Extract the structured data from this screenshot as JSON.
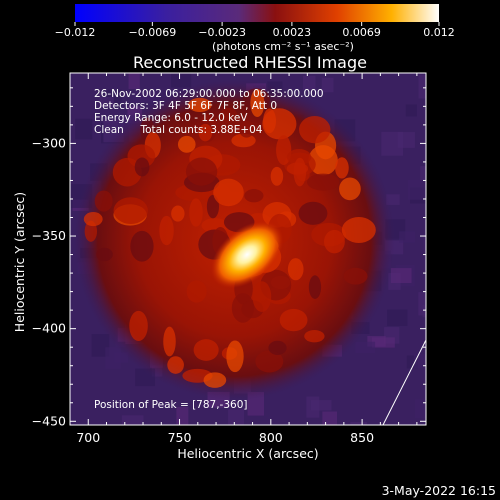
{
  "chart_data": {
    "type": "heatmap",
    "title": "Reconstructed RHESSI Image",
    "xlabel": "Heliocentric X (arcsec)",
    "ylabel": "Heliocentric Y (arcsec)",
    "xlim": [
      690,
      885
    ],
    "ylim": [
      -452,
      -262
    ],
    "x_ticks": [
      700,
      750,
      800,
      850
    ],
    "y_ticks": [
      -300,
      -350,
      -400,
      -450
    ],
    "colorbar": {
      "min": -0.012,
      "max": 0.012,
      "ticks": [
        "-0.012",
        "-0.0069",
        "-0.0023",
        "0.0023",
        "0.0069",
        "0.012"
      ],
      "unit_label": "(photons cm⁻² s⁻¹ asec⁻²)"
    },
    "annotations": {
      "time_range": "26-Nov-2002 06:29:00.000 to 06:35:00.000",
      "detectors": "Detectors: 3F 4F 5F 6F 7F 8F, Att 0",
      "energy_range": "Energy Range: 6.0 - 12.0 keV",
      "method": "Clean     Total counts: 3.88E+04",
      "peak_label": "Position of Peak = [787,-360]"
    },
    "peak": {
      "x": 787,
      "y": -360
    },
    "emission_disk": {
      "center_x": 780,
      "center_y": -352,
      "radius": 88
    },
    "timestamp": "3-May-2022 16:15"
  }
}
